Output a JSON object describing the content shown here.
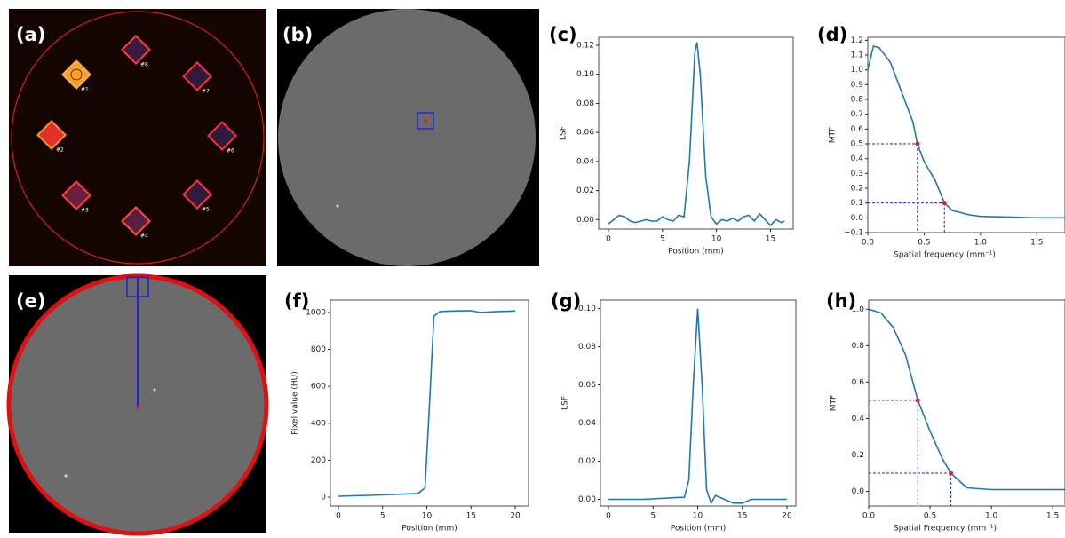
{
  "panels": {
    "labels": [
      "(a)",
      "(b)",
      "(c)",
      "(d)",
      "(e)",
      "(f)",
      "(g)",
      "(h)"
    ],
    "insert_labels": [
      "#1",
      "#2",
      "#3",
      "#4",
      "#5",
      "#6",
      "#7",
      "#8"
    ]
  },
  "chart_data": [
    {
      "type": "line",
      "ylabel": "LSF",
      "xlabel": "Position (mm)",
      "color": "#1f77b4",
      "x": [
        0,
        0.5,
        1,
        1.5,
        2,
        2.5,
        3,
        3.5,
        4,
        4.5,
        5,
        5.5,
        6,
        6.5,
        7,
        7.5,
        8,
        8.2,
        8.5,
        9,
        9.5,
        10,
        10.5,
        11,
        11.5,
        12,
        12.5,
        13,
        13.5,
        14,
        14.5,
        15,
        15.5,
        16,
        16.3
      ],
      "y": [
        -0.003,
        0,
        0.003,
        0.002,
        -0.001,
        -0.002,
        -0.001,
        0,
        -0.001,
        -0.001,
        0.002,
        0,
        -0.001,
        0.003,
        0.002,
        0.04,
        0.115,
        0.122,
        0.1,
        0.03,
        0.002,
        -0.003,
        0,
        -0.001,
        0.001,
        -0.001,
        0.002,
        0.003,
        -0.001,
        0.004,
        0,
        -0.004,
        0,
        -0.002,
        -0.001
      ],
      "xlim": [
        -0.9,
        17.1
      ],
      "ylim": [
        -0.0065,
        0.1255
      ],
      "xticks": [
        0,
        5,
        10,
        15
      ],
      "yticks": [
        {
          "value": 0,
          "label": "0.00"
        },
        {
          "value": 0.02,
          "label": "0.02"
        },
        {
          "value": 0.04,
          "label": "0.04"
        },
        {
          "value": 0.06,
          "label": "0.06"
        },
        {
          "value": 0.08,
          "label": "0.08"
        },
        {
          "value": 0.1,
          "label": "0.10"
        },
        {
          "value": 0.12,
          "label": "0.12"
        }
      ]
    },
    {
      "type": "line",
      "ylabel": "MTF",
      "xlabel": "Spatial frequency (mm⁻¹)",
      "color": "#1f77b4",
      "x": [
        0,
        0.05,
        0.1,
        0.2,
        0.3,
        0.4,
        0.44,
        0.5,
        0.6,
        0.68,
        0.75,
        0.9,
        1.0,
        1.5,
        1.75
      ],
      "y": [
        1.0,
        1.16,
        1.15,
        1.05,
        0.85,
        0.65,
        0.5,
        0.38,
        0.25,
        0.1,
        0.05,
        0.02,
        0.01,
        0.0,
        0.0
      ],
      "points": {
        "x": [
          0.44,
          0.68
        ],
        "y": [
          0.5,
          0.1
        ],
        "color": "#e02020",
        "guide_color": "#2020cc"
      },
      "xlim": [
        0,
        1.75
      ],
      "ylim": [
        -0.1,
        1.22
      ],
      "xticks": [
        {
          "value": 0,
          "label": "0.0"
        },
        {
          "value": 0.5,
          "label": "0.5"
        },
        {
          "value": 1,
          "label": "1.0"
        },
        {
          "value": 1.5,
          "label": "1.5"
        }
      ],
      "yticks": [
        {
          "value": -0.1,
          "label": "−0.1"
        },
        {
          "value": 0,
          "label": "0.0"
        },
        {
          "value": 0.1,
          "label": "0.1"
        },
        {
          "value": 0.2,
          "label": "0.2"
        },
        {
          "value": 0.3,
          "label": "0.3"
        },
        {
          "value": 0.4,
          "label": "0.4"
        },
        {
          "value": 0.5,
          "label": "0.5"
        },
        {
          "value": 0.6,
          "label": "0.6"
        },
        {
          "value": 0.7,
          "label": "0.7"
        },
        {
          "value": 0.8,
          "label": "0.8"
        },
        {
          "value": 0.9,
          "label": "0.9"
        },
        {
          "value": 1,
          "label": "1.0"
        },
        {
          "value": 1.1,
          "label": "1.1"
        },
        {
          "value": 1.2,
          "label": "1.2"
        }
      ]
    },
    {
      "type": "line",
      "ylabel": "Pixel value (HU)",
      "xlabel": "Position (mm)",
      "color": "#1f77b4",
      "x": [
        0,
        5,
        9,
        9.8,
        10.3,
        10.8,
        11.5,
        13,
        15,
        16,
        18,
        20
      ],
      "y": [
        5,
        12,
        20,
        50,
        500,
        980,
        1005,
        1008,
        1010,
        1000,
        1005,
        1008
      ],
      "xlim": [
        -0.9,
        21.5
      ],
      "ylim": [
        -48,
        1067
      ],
      "xticks": [
        0,
        5,
        10,
        15,
        20
      ],
      "yticks": [
        0,
        200,
        400,
        600,
        800,
        1000
      ]
    },
    {
      "type": "line",
      "ylabel": "LSF",
      "xlabel": "Position (mm)",
      "color": "#1f77b4",
      "x": [
        0,
        4,
        8,
        8.5,
        9,
        9.5,
        10,
        10.5,
        11,
        11.5,
        12,
        13,
        14,
        15,
        16,
        18,
        20
      ],
      "y": [
        0,
        0,
        0.001,
        0.001,
        0.01,
        0.06,
        0.1,
        0.06,
        0.005,
        -0.002,
        0.002,
        0,
        -0.002,
        -0.002,
        0,
        0,
        0
      ],
      "xlim": [
        -0.9,
        21.0
      ],
      "ylim": [
        -0.0035,
        0.1045
      ],
      "xticks": [
        0,
        5,
        10,
        15,
        20
      ],
      "yticks": [
        {
          "value": 0,
          "label": "0.00"
        },
        {
          "value": 0.02,
          "label": "0.02"
        },
        {
          "value": 0.04,
          "label": "0.04"
        },
        {
          "value": 0.06,
          "label": "0.06"
        },
        {
          "value": 0.08,
          "label": "0.08"
        },
        {
          "value": 0.1,
          "label": "0.10"
        }
      ]
    },
    {
      "type": "line",
      "ylabel": "MTF",
      "xlabel": "Spatial Frequency (mm⁻¹)",
      "color": "#1f77b4",
      "x": [
        0,
        0.1,
        0.2,
        0.3,
        0.4,
        0.5,
        0.6,
        0.67,
        0.8,
        1.0,
        1.5,
        1.6
      ],
      "y": [
        1.0,
        0.98,
        0.9,
        0.75,
        0.5,
        0.33,
        0.18,
        0.1,
        0.02,
        0.01,
        0.01,
        0.01
      ],
      "points": {
        "x": [
          0.4,
          0.67
        ],
        "y": [
          0.5,
          0.1
        ],
        "color": "#e02020",
        "guide_color": "#2020cc"
      },
      "xlim": [
        0,
        1.6
      ],
      "ylim": [
        -0.08,
        1.05
      ],
      "xticks": [
        {
          "value": 0,
          "label": "0.0"
        },
        {
          "value": 0.5,
          "label": "0.5"
        },
        {
          "value": 1,
          "label": "1.0"
        },
        {
          "value": 1.5,
          "label": "1.5"
        }
      ],
      "yticks": [
        {
          "value": 0,
          "label": "0.0"
        },
        {
          "value": 0.2,
          "label": "0.2"
        },
        {
          "value": 0.4,
          "label": "0.4"
        },
        {
          "value": 0.6,
          "label": "0.6"
        },
        {
          "value": 0.8,
          "label": "0.8"
        },
        {
          "value": 1,
          "label": "1.0"
        }
      ]
    }
  ]
}
